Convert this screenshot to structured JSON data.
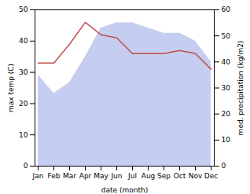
{
  "chart_data": {
    "type": "line",
    "xlabel": "date (month)",
    "ylabel": "max temp (C)",
    "y2label": "med. precipitation (kg/m2)",
    "categories": [
      "Jan",
      "Feb",
      "Mar",
      "Apr",
      "May",
      "Jun",
      "Jul",
      "Aug",
      "Sep",
      "Oct",
      "Nov",
      "Dec"
    ],
    "series": [
      {
        "type": "area",
        "axis": "y2",
        "color": "#c5cdf0",
        "values": [
          35,
          28,
          32,
          42,
          53,
          55,
          55,
          53,
          51,
          51,
          48,
          40
        ]
      },
      {
        "type": "line",
        "color": "#c0504d",
        "values": [
          33,
          33,
          39,
          46,
          42,
          41,
          36,
          36,
          36,
          37,
          36,
          31
        ]
      }
    ],
    "ylim": [
      0,
      50
    ],
    "yticks": [
      0,
      10,
      20,
      30,
      40,
      50
    ],
    "y2lim": [
      0,
      60
    ],
    "y2ticks": [
      0,
      10,
      20,
      30,
      40,
      50,
      60
    ],
    "grid": false
  }
}
